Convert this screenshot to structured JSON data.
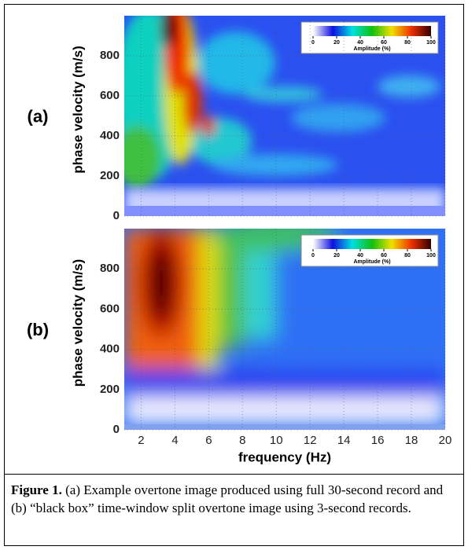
{
  "chart_data": [
    {
      "type": "heatmap",
      "panel_label": "(a)",
      "ylabel": "phase velocity (m/s)",
      "xlim": [
        1,
        20
      ],
      "ylim": [
        0,
        1000
      ],
      "yticks": [
        0,
        200,
        400,
        600,
        800
      ],
      "grid": true,
      "colorbar": {
        "label": "Amplitude (%)",
        "lim": [
          0,
          100
        ],
        "ticks": [
          0,
          20,
          40,
          60,
          80,
          100
        ],
        "colors": [
          "#ffffff",
          "#1010e0",
          "#00e0e0",
          "#10c010",
          "#f0e000",
          "#f03000",
          "#300000"
        ]
      }
    },
    {
      "type": "heatmap",
      "panel_label": "(b)",
      "ylabel": "phase velocity (m/s)",
      "xlabel": "frequency (Hz)",
      "xlim": [
        1,
        20
      ],
      "ylim": [
        0,
        1000
      ],
      "xticks": [
        2,
        4,
        6,
        8,
        10,
        12,
        14,
        16,
        18,
        20
      ],
      "yticks": [
        0,
        200,
        400,
        600,
        800
      ],
      "grid": true,
      "colorbar": {
        "label": "Amplitude (%)",
        "lim": [
          0,
          100
        ],
        "ticks": [
          0,
          20,
          40,
          60,
          80,
          100
        ],
        "colors": [
          "#ffffff",
          "#1010e0",
          "#00e0e0",
          "#10c010",
          "#f0e000",
          "#f03000",
          "#300000"
        ]
      }
    }
  ],
  "caption": {
    "label": "Figure 1.",
    "text": "(a) Example overtone image produced using full 30-second record and (b) “black box” time-window split overtone image using 3-second records."
  }
}
